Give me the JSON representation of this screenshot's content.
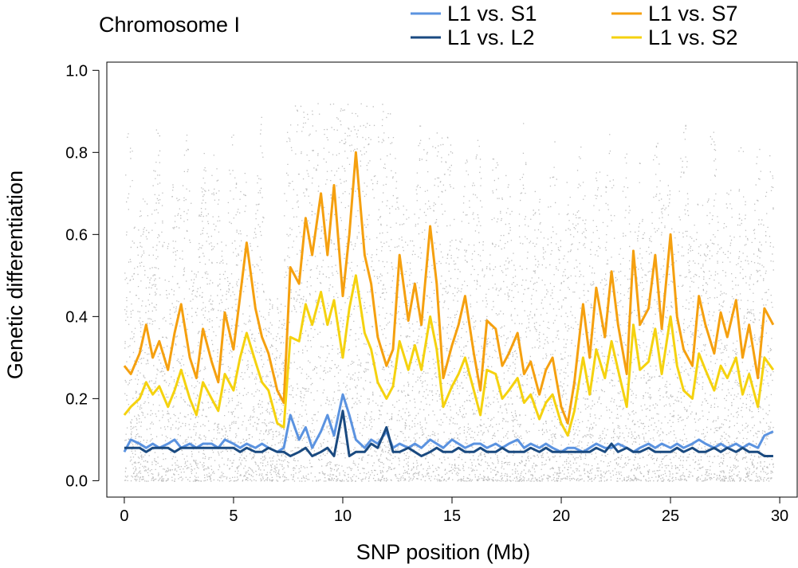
{
  "chart_data": {
    "type": "line",
    "title": "Chromosome I",
    "xlabel": "SNP position (Mb)",
    "ylabel": "Genetic differentiation",
    "xlim": [
      -0.8,
      30.8
    ],
    "ylim": [
      -0.04,
      1.02
    ],
    "x_ticks": [
      0,
      5,
      10,
      15,
      20,
      25,
      30
    ],
    "x_tick_labels": [
      "0",
      "5",
      "10",
      "15",
      "20",
      "25",
      "30"
    ],
    "y_ticks": [
      0.0,
      0.2,
      0.4,
      0.6,
      0.8,
      1.0
    ],
    "y_tick_labels": [
      "0.0",
      "0.2",
      "0.4",
      "0.6",
      "0.8",
      "1.0"
    ],
    "grid": false,
    "legend_position": "top-right",
    "background_points": {
      "name": "SNP-wise differentiation",
      "color": "#bdbdbd",
      "x_range": [
        0,
        29.7
      ],
      "y_range": [
        0,
        1.0
      ]
    },
    "series": [
      {
        "name": "L1 vs. S7",
        "color": "#f5a00f",
        "x": [
          0,
          0.3,
          0.7,
          1.0,
          1.3,
          1.6,
          2.0,
          2.3,
          2.6,
          3.0,
          3.3,
          3.6,
          4.0,
          4.3,
          4.6,
          5.0,
          5.3,
          5.6,
          6.0,
          6.3,
          6.6,
          7.0,
          7.3,
          7.6,
          8.0,
          8.3,
          8.6,
          9.0,
          9.3,
          9.6,
          10.0,
          10.3,
          10.6,
          11.0,
          11.3,
          11.6,
          12.0,
          12.3,
          12.6,
          13.0,
          13.3,
          13.6,
          14.0,
          14.3,
          14.6,
          15.0,
          15.3,
          15.6,
          16.0,
          16.3,
          16.6,
          17.0,
          17.3,
          17.6,
          18.0,
          18.3,
          18.6,
          19.0,
          19.3,
          19.6,
          20.0,
          20.3,
          20.6,
          21.0,
          21.3,
          21.6,
          22.0,
          22.3,
          22.6,
          23.0,
          23.3,
          23.6,
          24.0,
          24.3,
          24.6,
          25.0,
          25.3,
          25.6,
          26.0,
          26.3,
          26.6,
          27.0,
          27.3,
          27.6,
          28.0,
          28.3,
          28.6,
          29.0,
          29.3,
          29.7
        ],
        "values": [
          0.28,
          0.26,
          0.31,
          0.38,
          0.3,
          0.34,
          0.27,
          0.36,
          0.43,
          0.3,
          0.25,
          0.37,
          0.29,
          0.24,
          0.41,
          0.32,
          0.45,
          0.58,
          0.42,
          0.35,
          0.31,
          0.22,
          0.19,
          0.52,
          0.48,
          0.64,
          0.55,
          0.7,
          0.55,
          0.72,
          0.45,
          0.6,
          0.8,
          0.55,
          0.48,
          0.35,
          0.28,
          0.32,
          0.55,
          0.39,
          0.48,
          0.38,
          0.62,
          0.48,
          0.25,
          0.33,
          0.38,
          0.45,
          0.31,
          0.22,
          0.39,
          0.37,
          0.28,
          0.31,
          0.36,
          0.26,
          0.29,
          0.21,
          0.27,
          0.3,
          0.18,
          0.14,
          0.24,
          0.43,
          0.3,
          0.47,
          0.35,
          0.51,
          0.38,
          0.26,
          0.56,
          0.38,
          0.42,
          0.55,
          0.37,
          0.6,
          0.4,
          0.32,
          0.28,
          0.45,
          0.38,
          0.31,
          0.41,
          0.35,
          0.44,
          0.3,
          0.38,
          0.25,
          0.42,
          0.38
        ]
      },
      {
        "name": "L1 vs. S2",
        "color": "#f5d20f",
        "x": [
          0,
          0.3,
          0.7,
          1.0,
          1.3,
          1.6,
          2.0,
          2.3,
          2.6,
          3.0,
          3.3,
          3.6,
          4.0,
          4.3,
          4.6,
          5.0,
          5.3,
          5.6,
          6.0,
          6.3,
          6.6,
          7.0,
          7.3,
          7.6,
          8.0,
          8.3,
          8.6,
          9.0,
          9.3,
          9.6,
          10.0,
          10.3,
          10.6,
          11.0,
          11.3,
          11.6,
          12.0,
          12.3,
          12.6,
          13.0,
          13.3,
          13.6,
          14.0,
          14.3,
          14.6,
          15.0,
          15.3,
          15.6,
          16.0,
          16.3,
          16.6,
          17.0,
          17.3,
          17.6,
          18.0,
          18.3,
          18.6,
          19.0,
          19.3,
          19.6,
          20.0,
          20.3,
          20.6,
          21.0,
          21.3,
          21.6,
          22.0,
          22.3,
          22.6,
          23.0,
          23.3,
          23.6,
          24.0,
          24.3,
          24.6,
          25.0,
          25.3,
          25.6,
          26.0,
          26.3,
          26.6,
          27.0,
          27.3,
          27.6,
          28.0,
          28.3,
          28.6,
          29.0,
          29.3,
          29.7
        ],
        "values": [
          0.16,
          0.18,
          0.2,
          0.24,
          0.21,
          0.23,
          0.18,
          0.22,
          0.27,
          0.2,
          0.16,
          0.24,
          0.2,
          0.17,
          0.26,
          0.22,
          0.3,
          0.36,
          0.29,
          0.24,
          0.22,
          0.14,
          0.13,
          0.35,
          0.34,
          0.43,
          0.38,
          0.46,
          0.38,
          0.44,
          0.3,
          0.42,
          0.5,
          0.36,
          0.32,
          0.24,
          0.2,
          0.23,
          0.34,
          0.27,
          0.33,
          0.27,
          0.4,
          0.32,
          0.18,
          0.23,
          0.26,
          0.3,
          0.22,
          0.16,
          0.27,
          0.26,
          0.2,
          0.22,
          0.25,
          0.19,
          0.21,
          0.15,
          0.19,
          0.21,
          0.14,
          0.11,
          0.17,
          0.3,
          0.21,
          0.32,
          0.25,
          0.34,
          0.27,
          0.18,
          0.38,
          0.27,
          0.29,
          0.37,
          0.26,
          0.4,
          0.28,
          0.22,
          0.2,
          0.31,
          0.27,
          0.22,
          0.28,
          0.25,
          0.3,
          0.21,
          0.26,
          0.18,
          0.3,
          0.27
        ]
      },
      {
        "name": "L1 vs. S1",
        "color": "#5b93e0",
        "x": [
          0,
          0.3,
          0.7,
          1.0,
          1.3,
          1.6,
          2.0,
          2.3,
          2.6,
          3.0,
          3.3,
          3.6,
          4.0,
          4.3,
          4.6,
          5.0,
          5.3,
          5.6,
          6.0,
          6.3,
          6.6,
          7.0,
          7.3,
          7.6,
          8.0,
          8.3,
          8.6,
          9.0,
          9.3,
          9.6,
          10.0,
          10.3,
          10.6,
          11.0,
          11.3,
          11.6,
          12.0,
          12.3,
          12.6,
          13.0,
          13.3,
          13.6,
          14.0,
          14.3,
          14.6,
          15.0,
          15.3,
          15.6,
          16.0,
          16.3,
          16.6,
          17.0,
          17.3,
          17.6,
          18.0,
          18.3,
          18.6,
          19.0,
          19.3,
          19.6,
          20.0,
          20.3,
          20.6,
          21.0,
          21.3,
          21.6,
          22.0,
          22.3,
          22.6,
          23.0,
          23.3,
          23.6,
          24.0,
          24.3,
          24.6,
          25.0,
          25.3,
          25.6,
          26.0,
          26.3,
          26.6,
          27.0,
          27.3,
          27.6,
          28.0,
          28.3,
          28.6,
          29.0,
          29.3,
          29.7
        ],
        "values": [
          0.07,
          0.1,
          0.09,
          0.08,
          0.09,
          0.08,
          0.09,
          0.1,
          0.08,
          0.09,
          0.08,
          0.09,
          0.09,
          0.08,
          0.1,
          0.09,
          0.08,
          0.09,
          0.08,
          0.09,
          0.08,
          0.07,
          0.08,
          0.16,
          0.1,
          0.13,
          0.08,
          0.12,
          0.16,
          0.11,
          0.21,
          0.16,
          0.1,
          0.08,
          0.1,
          0.09,
          0.12,
          0.08,
          0.09,
          0.08,
          0.09,
          0.08,
          0.1,
          0.09,
          0.08,
          0.1,
          0.09,
          0.08,
          0.09,
          0.09,
          0.08,
          0.09,
          0.08,
          0.09,
          0.1,
          0.08,
          0.09,
          0.08,
          0.09,
          0.08,
          0.07,
          0.08,
          0.08,
          0.07,
          0.08,
          0.09,
          0.08,
          0.08,
          0.09,
          0.08,
          0.07,
          0.08,
          0.09,
          0.08,
          0.09,
          0.08,
          0.09,
          0.08,
          0.09,
          0.1,
          0.09,
          0.08,
          0.09,
          0.08,
          0.09,
          0.08,
          0.09,
          0.08,
          0.11,
          0.12
        ]
      },
      {
        "name": "L1 vs. L2",
        "color": "#1a4a80",
        "x": [
          0,
          0.3,
          0.7,
          1.0,
          1.3,
          1.6,
          2.0,
          2.3,
          2.6,
          3.0,
          3.3,
          3.6,
          4.0,
          4.3,
          4.6,
          5.0,
          5.3,
          5.6,
          6.0,
          6.3,
          6.6,
          7.0,
          7.3,
          7.6,
          8.0,
          8.3,
          8.6,
          9.0,
          9.3,
          9.6,
          10.0,
          10.3,
          10.6,
          11.0,
          11.3,
          11.6,
          12.0,
          12.3,
          12.6,
          13.0,
          13.3,
          13.6,
          14.0,
          14.3,
          14.6,
          15.0,
          15.3,
          15.6,
          16.0,
          16.3,
          16.6,
          17.0,
          17.3,
          17.6,
          18.0,
          18.3,
          18.6,
          19.0,
          19.3,
          19.6,
          20.0,
          20.3,
          20.6,
          21.0,
          21.3,
          21.6,
          22.0,
          22.3,
          22.6,
          23.0,
          23.3,
          23.6,
          24.0,
          24.3,
          24.6,
          25.0,
          25.3,
          25.6,
          26.0,
          26.3,
          26.6,
          27.0,
          27.3,
          27.6,
          28.0,
          28.3,
          28.6,
          29.0,
          29.3,
          29.7
        ],
        "values": [
          0.08,
          0.08,
          0.08,
          0.07,
          0.08,
          0.08,
          0.08,
          0.07,
          0.08,
          0.08,
          0.08,
          0.08,
          0.08,
          0.08,
          0.08,
          0.08,
          0.07,
          0.08,
          0.07,
          0.07,
          0.08,
          0.07,
          0.07,
          0.06,
          0.07,
          0.08,
          0.06,
          0.07,
          0.08,
          0.06,
          0.17,
          0.06,
          0.07,
          0.07,
          0.09,
          0.08,
          0.13,
          0.07,
          0.07,
          0.08,
          0.07,
          0.06,
          0.07,
          0.08,
          0.07,
          0.07,
          0.08,
          0.07,
          0.07,
          0.08,
          0.07,
          0.07,
          0.08,
          0.07,
          0.07,
          0.07,
          0.08,
          0.07,
          0.08,
          0.07,
          0.07,
          0.07,
          0.07,
          0.07,
          0.07,
          0.08,
          0.07,
          0.09,
          0.07,
          0.08,
          0.07,
          0.07,
          0.08,
          0.07,
          0.07,
          0.07,
          0.08,
          0.07,
          0.08,
          0.07,
          0.07,
          0.08,
          0.07,
          0.08,
          0.07,
          0.08,
          0.07,
          0.07,
          0.06,
          0.06
        ]
      }
    ],
    "legend": [
      {
        "label": "L1 vs. S1",
        "color": "#5b93e0"
      },
      {
        "label": "L1 vs. L2",
        "color": "#1a4a80"
      },
      {
        "label": "L1 vs. S7",
        "color": "#f5a00f"
      },
      {
        "label": "L1 vs. S2",
        "color": "#f5d20f"
      }
    ]
  }
}
